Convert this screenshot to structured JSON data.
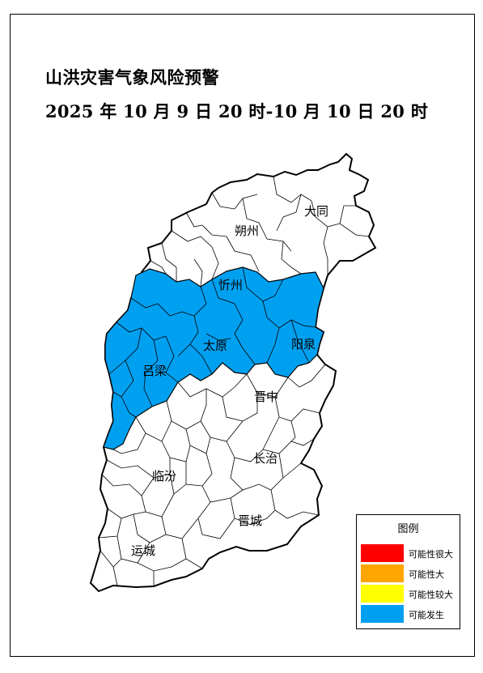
{
  "title": "山洪灾害气象风险预警",
  "subtitle": "2025 年 10 月 9 日 20 时-10 月 10 日 20 时",
  "map": {
    "warning_color": "#00a0f0",
    "city_labels": {
      "datong": "大同",
      "shuozhou": "朔州",
      "xinzhou": "忻州",
      "taiyuan": "太原",
      "yangquan": "阳泉",
      "lvliang": "吕梁",
      "jinzhong": "晋中",
      "changzhi": "长治",
      "linfen": "临汾",
      "jincheng": "晋城",
      "yuncheng": "运城"
    }
  },
  "legend": {
    "title": "图例",
    "items": [
      {
        "label": "可能性很大",
        "color": "#ff0000"
      },
      {
        "label": "可能性大",
        "color": "#ffa500"
      },
      {
        "label": "可能性较大",
        "color": "#ffff00"
      },
      {
        "label": "可能发生",
        "color": "#00a0f0"
      }
    ]
  }
}
